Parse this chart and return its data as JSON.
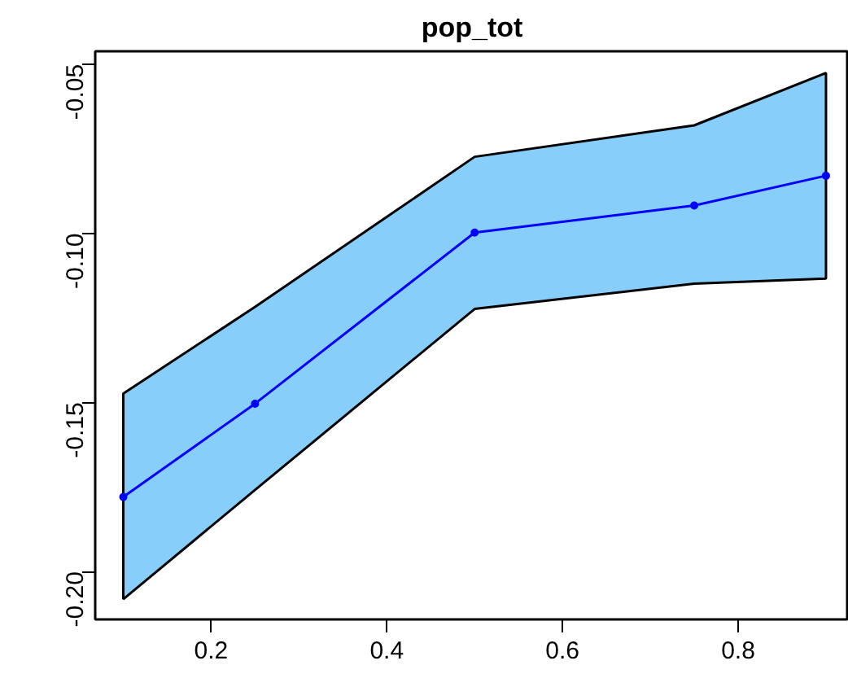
{
  "chart_data": {
    "type": "line",
    "title": "pop_tot",
    "x": [
      0.1,
      0.25,
      0.5,
      0.75,
      0.9
    ],
    "series": [
      {
        "color": "#0000ff",
        "values": [
          -0.178,
          -0.1504,
          -0.0998,
          -0.0918,
          -0.083
        ],
        "lower": [
          -0.2082,
          -0.1759,
          -0.1224,
          -0.1149,
          -0.1134
        ],
        "upper": [
          -0.1474,
          -0.1218,
          -0.0774,
          -0.0681,
          -0.0526
        ]
      }
    ],
    "xlim": [
      0.068,
      0.926
    ],
    "ylim": [
      -0.2142,
      -0.0462
    ],
    "xticks": [
      0.2,
      0.4,
      0.6,
      0.8
    ],
    "yticks": [
      {
        "value": -0.2,
        "label": "-0.20"
      },
      {
        "value": -0.15,
        "label": "-0.15"
      },
      {
        "value": -0.1,
        "label": "-0.10"
      },
      {
        "value": -0.05,
        "label": "-0.05"
      }
    ],
    "grid": false,
    "marker": "circle",
    "line_style": "solid"
  }
}
